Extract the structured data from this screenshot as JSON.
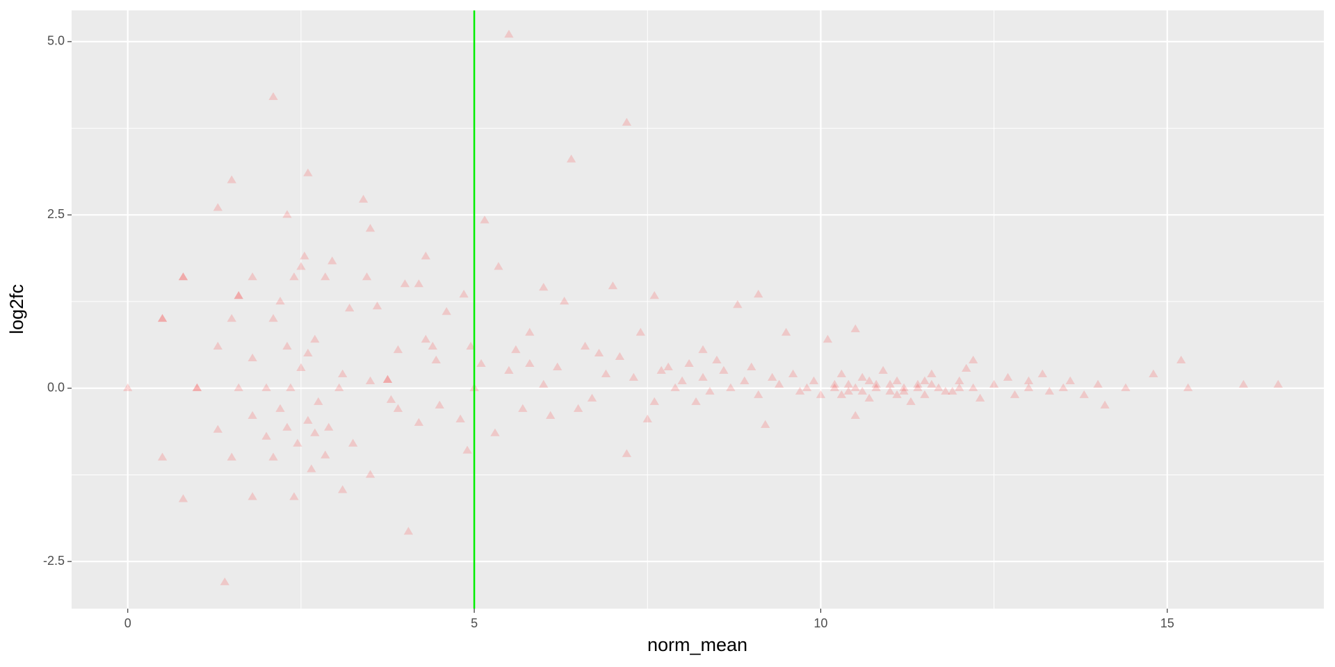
{
  "chart_data": {
    "type": "scatter",
    "x_label": "norm_mean",
    "y_label": "log2fc",
    "color": "#ff0000",
    "alpha": 0.15,
    "marker": "triangle",
    "vline": 5,
    "vline_color": "#00ee00",
    "grid": true,
    "xlim": [
      -0.81,
      17.26
    ],
    "ylim": [
      -3.18,
      5.45
    ],
    "xticks": [
      0,
      5,
      10,
      15
    ],
    "yticks": [
      {
        "value": -2.5,
        "label": "-2.5"
      },
      {
        "value": 0,
        "label": "0.0"
      },
      {
        "value": 2.5,
        "label": "2.5"
      },
      {
        "value": 5,
        "label": "5.0"
      }
    ],
    "x": [
      0,
      0.5,
      0.5,
      0.5,
      0.8,
      0.8,
      0.8,
      1,
      1,
      1.3,
      1.3,
      1.3,
      1.4,
      1.5,
      1.5,
      1.5,
      1.6,
      1.6,
      1.6,
      1.8,
      1.8,
      1.8,
      1.8,
      2.0,
      2.0,
      2.1,
      2.1,
      2.1,
      2.2,
      2.2,
      2.3,
      2.3,
      2.3,
      2.35,
      2.4,
      2.4,
      2.45,
      2.5,
      2.5,
      2.55,
      2.6,
      2.6,
      2.6,
      2.65,
      2.7,
      2.7,
      2.75,
      2.85,
      2.85,
      2.9,
      2.95,
      3.05,
      3.1,
      3.1,
      3.2,
      3.25,
      3.4,
      3.45,
      3.5,
      3.5,
      3.5,
      3.6,
      3.75,
      3.75,
      3.8,
      3.9,
      4.0,
      4.05,
      4.2,
      4.3,
      4.3,
      4.45,
      4.5,
      4.6,
      4.8,
      4.9,
      4.85,
      4.95,
      5.0,
      5.1,
      5.15,
      5.3,
      5.35,
      5.5,
      5.5,
      5.7,
      5.8,
      6.0,
      6.2,
      6.3,
      6.4,
      6.6,
      6.7,
      6.9,
      7.0,
      7.1,
      7.2,
      7.2,
      7.4,
      7.5,
      7.6,
      7.8,
      8.0,
      8.2,
      8.5,
      8.8,
      9.1,
      9.2,
      9.5,
      9.8,
      10.1,
      10.5,
      10.5,
      11.3,
      12.1,
      12.2,
      13.0,
      13.5,
      14.1,
      14.4,
      14.8,
      15.2,
      15.3,
      16.1,
      16.6,
      7.7,
      7.9,
      8.1,
      8.3,
      8.4,
      8.6,
      8.7,
      8.9,
      9.0,
      9.1,
      9.3,
      9.4,
      9.6,
      9.7,
      9.9,
      10.0,
      10.2,
      10.3,
      10.4,
      10.5,
      10.6,
      10.7,
      10.8,
      10.9,
      11.0,
      11.1,
      11.2,
      11.4,
      11.5,
      11.6,
      11.7,
      11.9,
      12.0,
      12.2,
      12.3,
      12.5,
      12.7,
      12.8,
      13.0,
      13.2,
      13.3,
      13.6,
      13.8,
      14.0,
      6.5,
      6.8,
      7.3,
      5.8,
      6.1,
      4.2,
      3.9,
      4.4,
      5.6,
      6.0,
      7.6,
      8.3,
      10.2,
      10.4,
      10.6,
      10.8,
      11.0,
      11.2,
      11.4,
      11.6,
      11.8,
      12.0,
      10.3,
      10.7,
      11.1,
      11.5
    ],
    "values": [
      0,
      1,
      1,
      -1,
      1.6,
      1.6,
      -1.6,
      0,
      0,
      0.6,
      -0.6,
      2.6,
      -2.8,
      3.0,
      1.0,
      -1.0,
      0,
      1.33,
      1.33,
      0.43,
      1.6,
      -0.4,
      -1.57,
      0,
      -0.7,
      1.0,
      -1.0,
      4.2,
      -0.3,
      1.25,
      2.5,
      0.6,
      -0.57,
      0,
      1.6,
      -1.57,
      -0.8,
      0.29,
      1.75,
      1.9,
      0.5,
      -0.47,
      3.1,
      -1.17,
      0.7,
      -0.65,
      -0.2,
      -0.97,
      1.6,
      -0.57,
      1.83,
      0,
      0.2,
      -1.47,
      1.15,
      -0.8,
      2.72,
      1.6,
      2.3,
      0.1,
      -1.25,
      1.18,
      0.12,
      0.12,
      -0.17,
      0.55,
      1.5,
      -2.07,
      1.5,
      1.9,
      0.7,
      0.4,
      -0.25,
      1.1,
      -0.45,
      -0.9,
      1.35,
      0.6,
      0,
      0.35,
      2.42,
      -0.65,
      1.75,
      5.1,
      0.25,
      -0.3,
      0.8,
      1.45,
      0.3,
      1.25,
      3.3,
      0.6,
      -0.15,
      0.2,
      1.47,
      0.45,
      3.83,
      -0.95,
      0.8,
      -0.45,
      1.33,
      0.3,
      0.1,
      -0.2,
      0.4,
      1.2,
      1.35,
      -0.53,
      0.8,
      0,
      0.7,
      -0.4,
      0.85,
      -0.2,
      0.28,
      0.4,
      0.1,
      0,
      -0.25,
      0,
      0.2,
      0.4,
      0,
      0.05,
      0.05,
      0.25,
      0.0,
      0.35,
      0.15,
      -0.05,
      0.25,
      0.0,
      0.1,
      0.3,
      -0.1,
      0.15,
      0.05,
      0.2,
      -0.05,
      0.1,
      -0.1,
      0.05,
      0.2,
      -0.05,
      0.0,
      0.15,
      -0.15,
      0.05,
      0.25,
      -0.05,
      0.1,
      0.0,
      0.05,
      -0.1,
      0.2,
      0.0,
      -0.05,
      0.1,
      0.0,
      -0.15,
      0.05,
      0.15,
      -0.1,
      0.0,
      0.2,
      -0.05,
      0.1,
      -0.1,
      0.05,
      -0.3,
      0.5,
      0.15,
      0.35,
      -0.4,
      -0.5,
      -0.3,
      0.6,
      0.55,
      0.05,
      -0.2,
      0.55,
      0.0,
      0.05,
      -0.05,
      0.0,
      0.05,
      -0.05,
      0.0,
      0.05,
      -0.05,
      0.0,
      -0.1,
      0.1,
      -0.1,
      0.1
    ]
  }
}
